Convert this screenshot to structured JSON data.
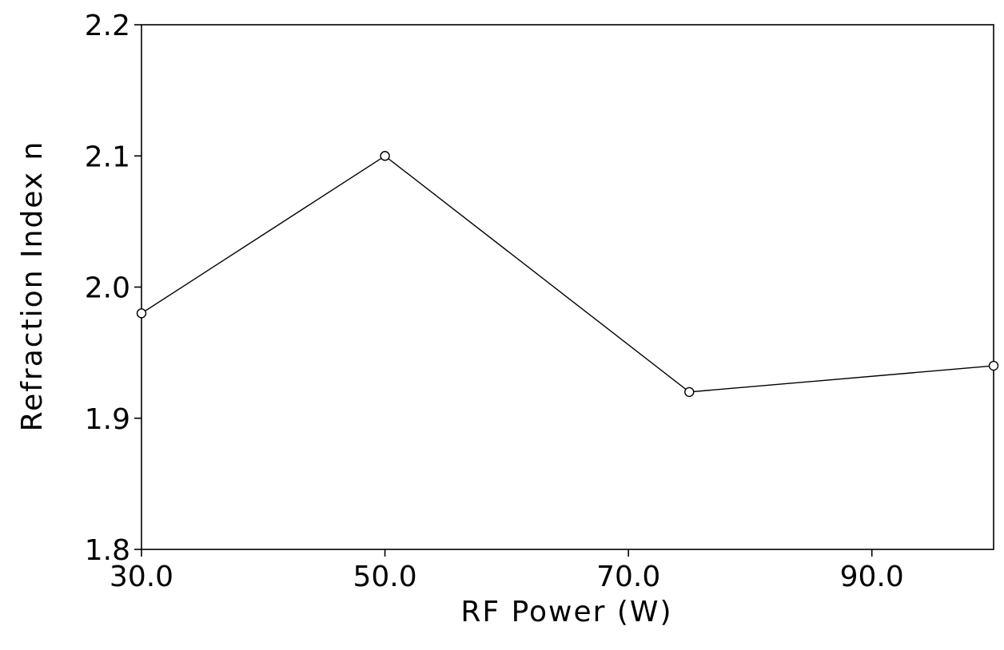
{
  "chart_data": {
    "type": "line",
    "title": "",
    "xlabel": "RF Power (W)",
    "ylabel": "Refraction Index n",
    "xlim": [
      30,
      100
    ],
    "ylim": [
      1.8,
      2.2
    ],
    "x_ticks": [
      30,
      50,
      70,
      90
    ],
    "x_tick_labels": [
      "30.0",
      "50.0",
      "70.0",
      "90.0"
    ],
    "y_ticks": [
      1.8,
      1.9,
      2.0,
      2.1,
      2.2
    ],
    "y_tick_labels": [
      "1.8",
      "1.9",
      "2.0",
      "2.1",
      "2.2"
    ],
    "grid": false,
    "legend": "none",
    "series": [
      {
        "marker": "open-circle",
        "color": "#000000",
        "x": [
          30,
          50,
          75,
          100
        ],
        "y": [
          1.98,
          2.1,
          1.92,
          1.94
        ]
      }
    ]
  }
}
